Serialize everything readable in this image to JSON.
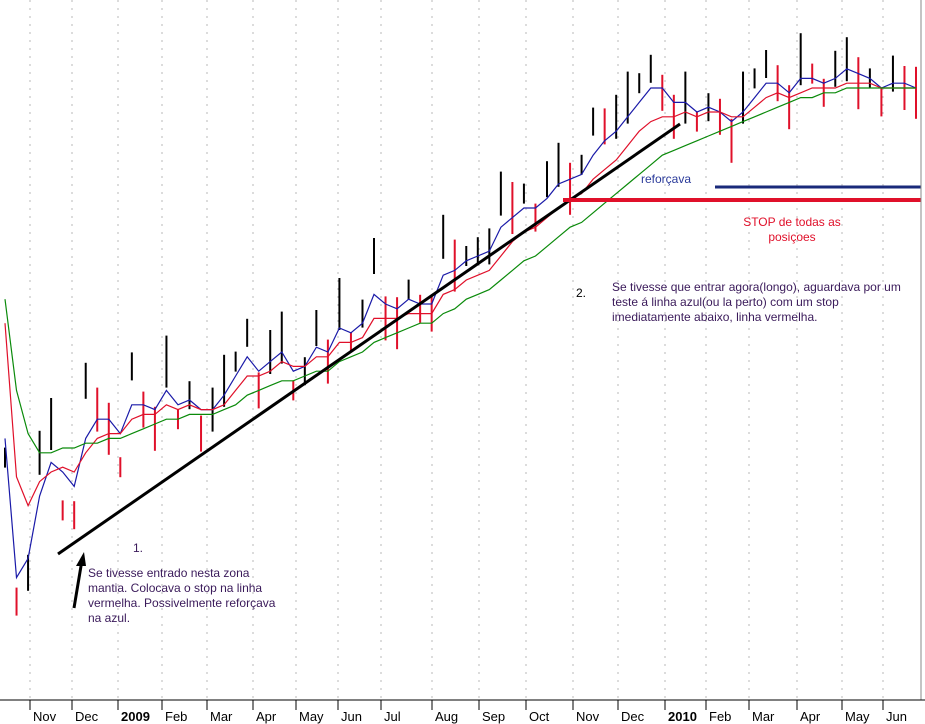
{
  "chart_data": {
    "type": "candlestick",
    "title": "",
    "x_tick_labels": [
      "Nov",
      "Dec",
      "2009",
      "Feb",
      "Mar",
      "Apr",
      "May",
      "Jun",
      "Jul",
      "Aug",
      "Sep",
      "Oct",
      "Nov",
      "Dec",
      "2010",
      "Feb",
      "Mar",
      "Apr",
      "May",
      "Jun"
    ],
    "price_range": [
      0,
      100
    ],
    "series": [
      {
        "name": "price",
        "color": "#000000",
        "down_color": "#e0102a",
        "values": [
          38,
          8,
          14,
          39,
          45,
          27,
          26,
          54,
          48,
          44,
          36,
          57,
          48,
          44,
          58,
          46,
          51,
          43,
          48,
          54,
          58,
          64,
          52,
          60,
          63,
          52,
          56,
          65,
          58,
          70,
          62,
          68,
          80,
          67,
          66,
          73,
          69,
          68,
          84,
          78,
          80,
          81,
          82,
          93,
          90,
          93,
          88,
          96,
          99,
          94,
          99,
          108,
          107,
          109,
          113,
          116,
          119,
          114,
          109,
          113,
          108,
          111,
          109,
          104,
          113,
          117,
          120,
          116,
          111,
          121,
          118,
          114,
          119,
          121,
          116,
          117,
          112,
          118,
          115,
          114
        ]
      },
      {
        "name": "fast MA",
        "color": "#1a1aa8",
        "values": [
          42,
          13,
          17,
          30,
          37,
          35,
          32,
          42,
          46,
          46,
          43,
          49,
          49,
          48,
          52,
          49,
          50,
          48,
          48,
          51,
          55,
          59,
          56,
          58,
          60,
          56,
          57,
          61,
          60,
          65,
          64,
          66,
          72,
          70,
          69,
          71,
          70,
          70,
          76,
          77,
          79,
          80,
          81,
          86,
          88,
          90,
          90,
          92,
          95,
          96,
          97,
          101,
          104,
          106,
          109,
          112,
          115,
          115,
          112,
          112,
          110,
          111,
          110,
          108,
          110,
          113,
          116,
          116,
          114,
          117,
          117,
          116,
          117,
          119,
          118,
          117,
          115,
          116,
          116,
          115
        ]
      },
      {
        "name": "medium MA",
        "color": "#e0102a",
        "values": [
          66,
          34,
          28,
          33,
          35,
          36,
          35,
          39,
          42,
          43,
          43,
          46,
          47,
          47,
          49,
          48,
          49,
          48,
          48,
          49,
          52,
          55,
          55,
          56,
          58,
          57,
          57,
          59,
          59,
          62,
          62,
          63,
          67,
          67,
          67,
          68,
          68,
          68,
          72,
          73,
          75,
          76,
          77,
          80,
          83,
          85,
          86,
          88,
          90,
          92,
          93,
          96,
          98,
          100,
          103,
          106,
          108,
          109,
          109,
          110,
          109,
          110,
          110,
          109,
          109,
          111,
          113,
          114,
          113,
          114,
          115,
          115,
          115,
          116,
          116,
          116,
          115,
          115,
          115,
          115
        ]
      },
      {
        "name": "slow MA",
        "color": "#0a8a0a",
        "values": [
          71,
          52,
          43,
          39,
          39,
          40,
          40,
          41,
          41,
          42,
          42,
          43,
          44,
          45,
          46,
          46,
          47,
          47,
          47,
          48,
          49,
          51,
          52,
          53,
          54,
          54,
          55,
          56,
          56,
          58,
          59,
          60,
          62,
          63,
          64,
          65,
          66,
          66,
          68,
          69,
          71,
          72,
          73,
          75,
          77,
          79,
          80,
          82,
          84,
          86,
          87,
          89,
          91,
          93,
          95,
          97,
          99,
          101,
          102,
          103,
          104,
          105,
          106,
          107,
          108,
          109,
          110,
          111,
          112,
          113,
          113,
          114,
          114,
          115,
          115,
          115,
          115,
          115,
          115,
          115
        ]
      }
    ],
    "support_line": {
      "name": "uptrend line",
      "color": "#000000"
    },
    "horizontal_levels": [
      {
        "name": "blue line (reforçava)",
        "color": "#1a2a7a"
      },
      {
        "name": "red line (STOP)",
        "color": "#e0102a"
      }
    ]
  },
  "annotations": {
    "marker1": "1.",
    "note1": "Se tivesse entrado nesta zona mantia. Colocava o stop na linha vermelha. Possivelmente reforçava na azul.",
    "marker2": "2.",
    "note2": "Se tivesse que entrar agora(longo), aguardava por um teste á linha azul(ou la perto) com um stop imediatamente abaixo, linha vermelha.",
    "blue_label": "reforçava",
    "red_label": "STOP de todas as posiçoes"
  }
}
